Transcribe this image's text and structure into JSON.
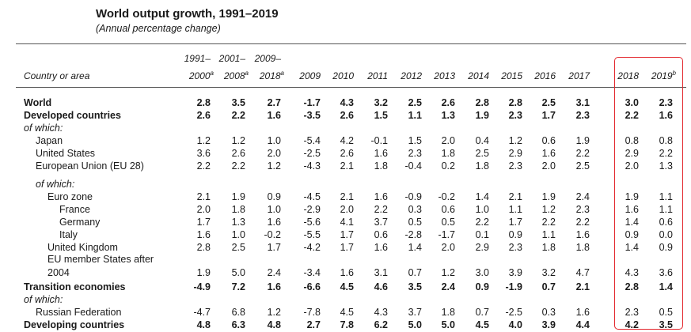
{
  "title": "World output growth, 1991–2019",
  "subtitle": "(Annual percentage change)",
  "header": {
    "row_label": "Country or area",
    "columns": [
      {
        "top": "1991–",
        "main": "2000",
        "sup": "a"
      },
      {
        "top": "2001–",
        "main": "2008",
        "sup": "a"
      },
      {
        "top": "2009–",
        "main": "2018",
        "sup": "a"
      },
      {
        "top": "",
        "main": "2009",
        "sup": ""
      },
      {
        "top": "",
        "main": "2010",
        "sup": ""
      },
      {
        "top": "",
        "main": "2011",
        "sup": ""
      },
      {
        "top": "",
        "main": "2012",
        "sup": ""
      },
      {
        "top": "",
        "main": "2013",
        "sup": ""
      },
      {
        "top": "",
        "main": "2014",
        "sup": ""
      },
      {
        "top": "",
        "main": "2015",
        "sup": ""
      },
      {
        "top": "",
        "main": "2016",
        "sup": ""
      },
      {
        "top": "",
        "main": "2017",
        "sup": ""
      },
      {
        "top": "",
        "main": "2018",
        "sup": ""
      },
      {
        "top": "",
        "main": "2019",
        "sup": "b"
      }
    ]
  },
  "rows": [
    {
      "label": "World",
      "indent": 0,
      "style": "bold",
      "values": [
        "2.8",
        "3.5",
        "2.7",
        "-1.7",
        "4.3",
        "3.2",
        "2.5",
        "2.6",
        "2.8",
        "2.8",
        "2.5",
        "3.1",
        "3.0",
        "2.3"
      ]
    },
    {
      "label": "Developed countries",
      "indent": 0,
      "style": "bold",
      "values": [
        "2.6",
        "2.2",
        "1.6",
        "-3.5",
        "2.6",
        "1.5",
        "1.1",
        "1.3",
        "1.9",
        "2.3",
        "1.7",
        "2.3",
        "2.2",
        "1.6"
      ]
    },
    {
      "label": "of which:",
      "indent": 0,
      "style": "italic",
      "values": []
    },
    {
      "label": "Japan",
      "indent": 1,
      "style": "normal",
      "values": [
        "1.2",
        "1.2",
        "1.0",
        "-5.4",
        "4.2",
        "-0.1",
        "1.5",
        "2.0",
        "0.4",
        "1.2",
        "0.6",
        "1.9",
        "0.8",
        "0.8"
      ]
    },
    {
      "label": "United States",
      "indent": 1,
      "style": "normal",
      "values": [
        "3.6",
        "2.6",
        "2.0",
        "-2.5",
        "2.6",
        "1.6",
        "2.3",
        "1.8",
        "2.5",
        "2.9",
        "1.6",
        "2.2",
        "2.9",
        "2.2"
      ]
    },
    {
      "label": "European Union (EU 28)",
      "indent": 1,
      "style": "normal",
      "values": [
        "2.2",
        "2.2",
        "1.2",
        "-4.3",
        "2.1",
        "1.8",
        "-0.4",
        "0.2",
        "1.8",
        "2.3",
        "2.0",
        "2.5",
        "2.0",
        "1.3"
      ]
    },
    {
      "label": "of which:",
      "indent": 1,
      "style": "italic",
      "values": []
    },
    {
      "label": "Euro zone",
      "indent": 2,
      "style": "normal",
      "values": [
        "2.1",
        "1.9",
        "0.9",
        "-4.5",
        "2.1",
        "1.6",
        "-0.9",
        "-0.2",
        "1.4",
        "2.1",
        "1.9",
        "2.4",
        "1.9",
        "1.1"
      ]
    },
    {
      "label": "France",
      "indent": 3,
      "style": "normal",
      "values": [
        "2.0",
        "1.8",
        "1.0",
        "-2.9",
        "2.0",
        "2.2",
        "0.3",
        "0.6",
        "1.0",
        "1.1",
        "1.2",
        "2.3",
        "1.6",
        "1.1"
      ]
    },
    {
      "label": "Germany",
      "indent": 3,
      "style": "normal",
      "values": [
        "1.7",
        "1.3",
        "1.6",
        "-5.6",
        "4.1",
        "3.7",
        "0.5",
        "0.5",
        "2.2",
        "1.7",
        "2.2",
        "2.2",
        "1.4",
        "0.6"
      ]
    },
    {
      "label": "Italy",
      "indent": 3,
      "style": "normal",
      "values": [
        "1.6",
        "1.0",
        "-0.2",
        "-5.5",
        "1.7",
        "0.6",
        "-2.8",
        "-1.7",
        "0.1",
        "0.9",
        "1.1",
        "1.6",
        "0.9",
        "0.0"
      ]
    },
    {
      "label": "United Kingdom",
      "indent": 2,
      "style": "normal",
      "values": [
        "2.8",
        "2.5",
        "1.7",
        "-4.2",
        "1.7",
        "1.6",
        "1.4",
        "2.0",
        "2.9",
        "2.3",
        "1.8",
        "1.8",
        "1.4",
        "0.9"
      ]
    },
    {
      "label": "EU member States after",
      "indent": 2,
      "style": "normal",
      "values": []
    },
    {
      "label": "2004",
      "indent": 2,
      "style": "normal",
      "values": [
        "1.9",
        "5.0",
        "2.4",
        "-3.4",
        "1.6",
        "3.1",
        "0.7",
        "1.2",
        "3.0",
        "3.9",
        "3.2",
        "4.7",
        "4.3",
        "3.6"
      ]
    },
    {
      "label": "Transition economies",
      "indent": 0,
      "style": "bold",
      "values": [
        "-4.9",
        "7.2",
        "1.6",
        "-6.6",
        "4.5",
        "4.6",
        "3.5",
        "2.4",
        "0.9",
        "-1.9",
        "0.7",
        "2.1",
        "2.8",
        "1.4"
      ]
    },
    {
      "label": "of which:",
      "indent": 0,
      "style": "italic",
      "values": []
    },
    {
      "label": "Russian Federation",
      "indent": 1,
      "style": "normal",
      "values": [
        "-4.7",
        "6.8",
        "1.2",
        "-7.8",
        "4.5",
        "4.3",
        "3.7",
        "1.8",
        "0.7",
        "-2.5",
        "0.3",
        "1.6",
        "2.3",
        "0.5"
      ]
    },
    {
      "label": "Developing countries",
      "indent": 0,
      "style": "bold",
      "values": [
        "4.8",
        "6.3",
        "4.8",
        "2.7",
        "7.8",
        "6.2",
        "5.0",
        "5.0",
        "4.5",
        "4.0",
        "3.9",
        "4.4",
        "4.2",
        "3.5"
      ]
    }
  ]
}
